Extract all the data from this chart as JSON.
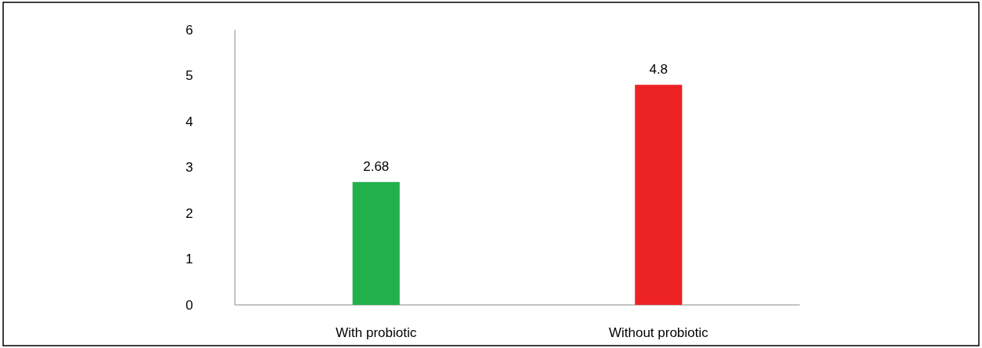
{
  "chart_data": {
    "type": "bar",
    "categories": [
      "With probiotic",
      "Without probiotic"
    ],
    "values": [
      2.68,
      4.8
    ],
    "colors": [
      "#22b04c",
      "#ed2224"
    ],
    "ylim": [
      0,
      6
    ],
    "yticks": [
      0,
      1,
      2,
      3,
      4,
      5,
      6
    ],
    "data_labels": true,
    "grid": false
  }
}
